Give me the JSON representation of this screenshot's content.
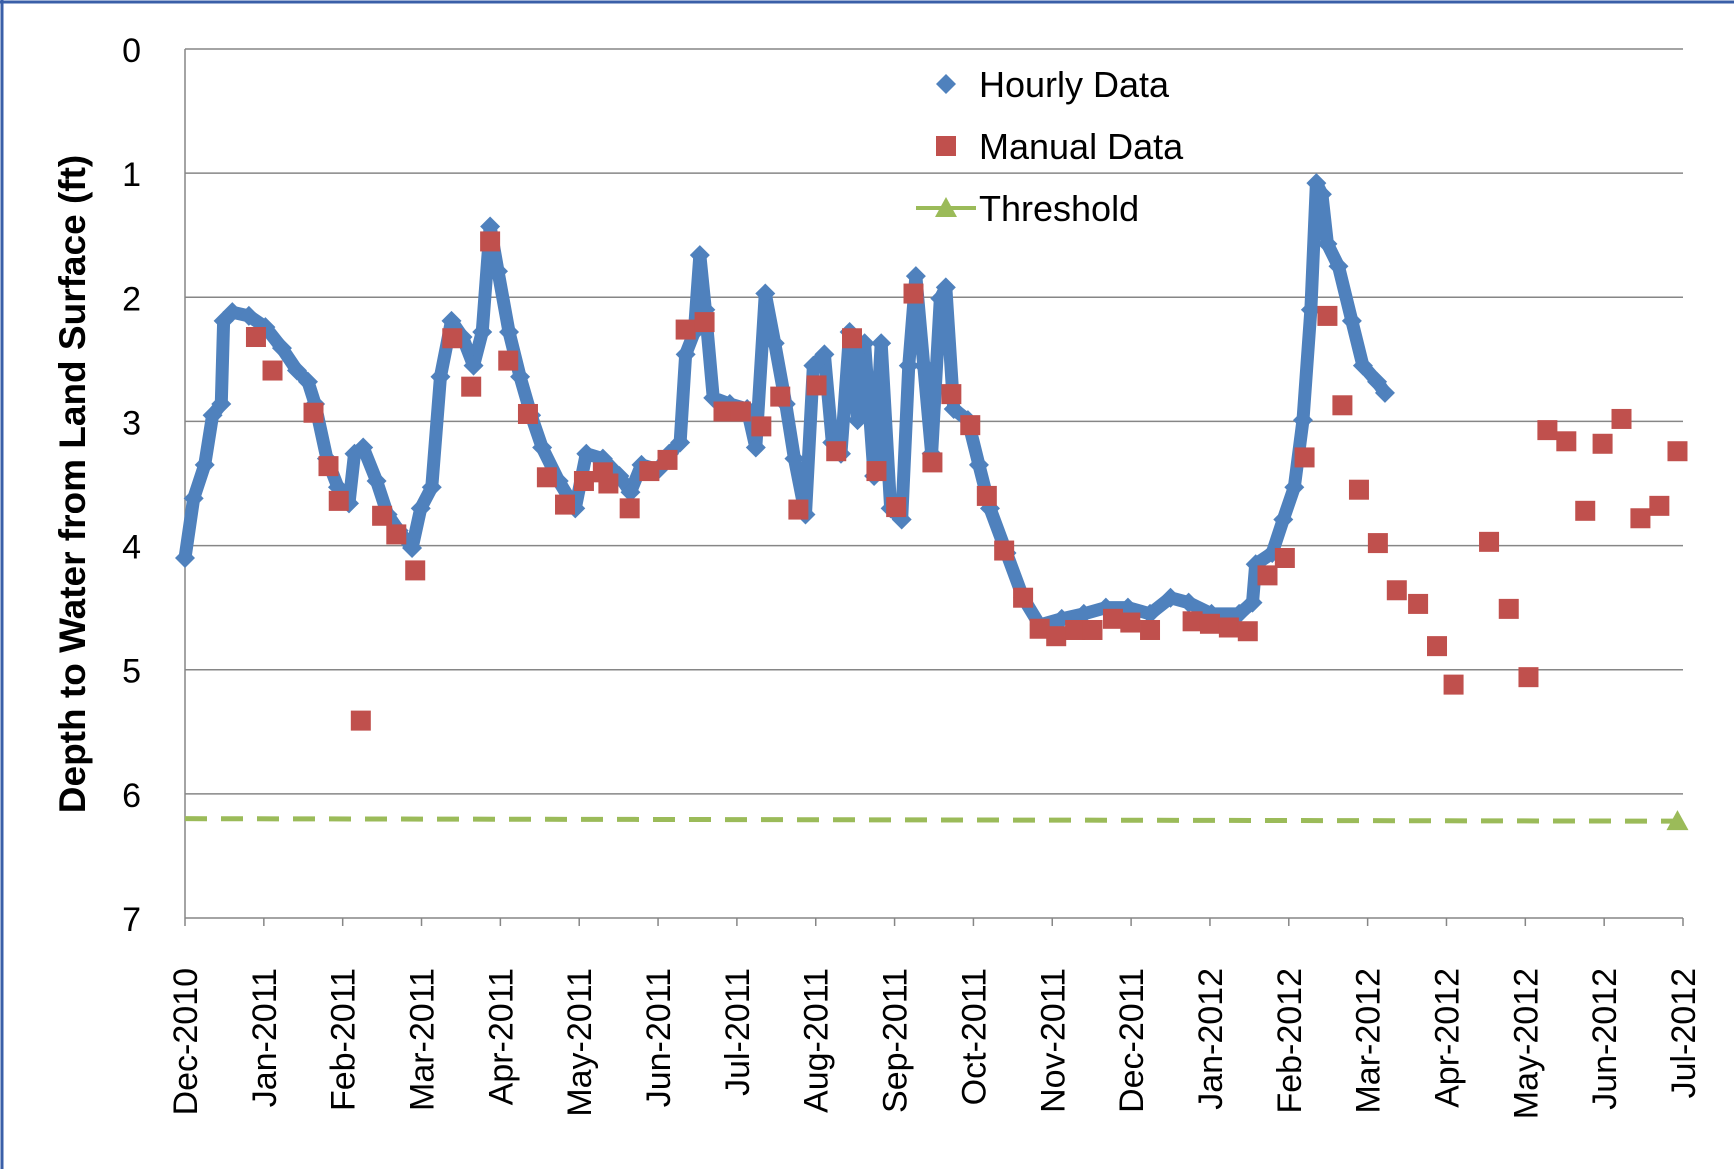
{
  "chart_data": {
    "type": "scatter",
    "y_label": "Depth to Water from Land Surface (ft)",
    "ylim": [
      0,
      7
    ],
    "yticks": [
      0,
      1,
      2,
      3,
      4,
      5,
      6,
      7
    ],
    "y_inverted": true,
    "xlim": [
      0,
      19
    ],
    "xticks": [
      {
        "value": 0,
        "label": "Dec-2010"
      },
      {
        "value": 1,
        "label": "Jan-2011"
      },
      {
        "value": 2,
        "label": "Feb-2011"
      },
      {
        "value": 3,
        "label": "Mar-2011"
      },
      {
        "value": 4,
        "label": "Apr-2011"
      },
      {
        "value": 5,
        "label": "May-2011"
      },
      {
        "value": 6,
        "label": "Jun-2011"
      },
      {
        "value": 7,
        "label": "Jul-2011"
      },
      {
        "value": 8,
        "label": "Aug-2011"
      },
      {
        "value": 9,
        "label": "Sep-2011"
      },
      {
        "value": 10,
        "label": "Oct-2011"
      },
      {
        "value": 11,
        "label": "Nov-2011"
      },
      {
        "value": 12,
        "label": "Dec-2011"
      },
      {
        "value": 13,
        "label": "Jan-2012"
      },
      {
        "value": 14,
        "label": "Feb-2012"
      },
      {
        "value": 15,
        "label": "Mar-2012"
      },
      {
        "value": 16,
        "label": "Apr-2012"
      },
      {
        "value": 17,
        "label": "May-2012"
      },
      {
        "value": 18,
        "label": "Jun-2012"
      },
      {
        "value": 19,
        "label": "Jul-2012"
      }
    ],
    "grid": true,
    "legend": "top",
    "series": [
      {
        "name": "Hourly Data",
        "color": "#4f81bd",
        "marker": "diamond",
        "connected": true,
        "x": [
          0,
          0.11,
          0.25,
          0.35,
          0.46,
          0.49,
          0.6,
          0.81,
          1.02,
          1.23,
          1.42,
          1.56,
          1.65,
          1.8,
          1.94,
          2.08,
          2.15,
          2.26,
          2.43,
          2.57,
          2.71,
          2.88,
          2.99,
          3.13,
          3.24,
          3.38,
          3.52,
          3.66,
          3.77,
          3.87,
          3.97,
          4.11,
          4.25,
          4.39,
          4.53,
          4.74,
          4.95,
          5.09,
          5.3,
          5.51,
          5.65,
          5.79,
          6.0,
          6.14,
          6.28,
          6.35,
          6.46,
          6.53,
          6.6,
          6.7,
          6.91,
          7.13,
          7.24,
          7.36,
          7.48,
          7.62,
          7.73,
          7.87,
          7.97,
          8.11,
          8.21,
          8.32,
          8.43,
          8.53,
          8.62,
          8.74,
          8.83,
          8.95,
          9.09,
          9.18,
          9.27,
          9.37,
          9.47,
          9.58,
          9.65,
          9.75,
          9.93,
          10.07,
          10.21,
          10.42,
          10.63,
          10.84,
          11.12,
          11.4,
          11.68,
          11.96,
          12.24,
          12.5,
          12.73,
          13.02,
          13.37,
          13.54,
          13.58,
          13.79,
          13.93,
          14.07,
          14.18,
          14.28,
          14.35,
          14.42,
          14.49,
          14.63,
          14.8,
          14.94,
          15.12,
          15.22
        ],
        "values": [
          4.1,
          3.62,
          3.35,
          2.95,
          2.86,
          2.19,
          2.12,
          2.15,
          2.24,
          2.41,
          2.59,
          2.68,
          2.86,
          3.3,
          3.53,
          3.66,
          3.26,
          3.21,
          3.48,
          3.75,
          3.88,
          4.02,
          3.7,
          3.53,
          2.64,
          2.19,
          2.32,
          2.55,
          2.28,
          1.43,
          1.79,
          2.28,
          2.64,
          2.95,
          3.21,
          3.48,
          3.7,
          3.26,
          3.3,
          3.44,
          3.57,
          3.35,
          3.39,
          3.26,
          3.17,
          2.46,
          2.28,
          1.66,
          2.1,
          2.81,
          2.86,
          2.9,
          3.21,
          1.97,
          2.37,
          2.86,
          3.3,
          3.75,
          2.55,
          2.46,
          3.17,
          3.26,
          2.28,
          2.99,
          2.37,
          3.44,
          2.37,
          3.7,
          3.79,
          2.55,
          1.83,
          2.55,
          3.26,
          2.01,
          1.92,
          2.9,
          2.99,
          3.35,
          3.7,
          4.06,
          4.42,
          4.64,
          4.59,
          4.55,
          4.5,
          4.5,
          4.55,
          4.42,
          4.46,
          4.55,
          4.55,
          4.46,
          4.15,
          4.06,
          3.79,
          3.53,
          2.99,
          2.1,
          1.08,
          1.17,
          1.57,
          1.75,
          2.19,
          2.55,
          2.68,
          2.77
        ]
      },
      {
        "name": "Manual Data",
        "color": "#c0504d",
        "marker": "square",
        "connected": false,
        "x": [
          0.9,
          1.11,
          1.63,
          1.82,
          1.95,
          2.23,
          2.5,
          2.68,
          2.92,
          3.39,
          3.63,
          3.87,
          4.1,
          4.35,
          4.59,
          4.82,
          5.06,
          5.3,
          5.37,
          5.64,
          5.89,
          6.12,
          6.35,
          6.59,
          6.83,
          7.05,
          7.31,
          7.55,
          7.78,
          8.01,
          8.26,
          8.46,
          8.77,
          9.02,
          9.24,
          9.48,
          9.72,
          9.96,
          10.17,
          10.39,
          10.63,
          10.84,
          11.05,
          11.29,
          11.51,
          11.77,
          11.99,
          12.24,
          12.78,
          13.0,
          13.24,
          13.48,
          13.73,
          13.95,
          14.2,
          14.49,
          14.68,
          14.89,
          15.13,
          15.37,
          15.64,
          15.88,
          16.09,
          16.54,
          16.79,
          17.04,
          17.28,
          17.52,
          17.76,
          17.98,
          18.22,
          18.46,
          18.7,
          18.93
        ],
        "values": [
          2.32,
          2.59,
          2.93,
          3.36,
          3.64,
          5.41,
          3.76,
          3.91,
          4.2,
          2.33,
          2.72,
          1.55,
          2.51,
          2.94,
          3.45,
          3.67,
          3.48,
          3.41,
          3.5,
          3.7,
          3.4,
          3.31,
          2.26,
          2.2,
          2.92,
          2.92,
          3.04,
          2.8,
          3.71,
          2.71,
          3.24,
          2.33,
          3.4,
          3.69,
          1.97,
          3.33,
          2.78,
          3.03,
          3.6,
          4.04,
          4.42,
          4.67,
          4.73,
          4.68,
          4.68,
          4.59,
          4.62,
          4.68,
          4.61,
          4.63,
          4.66,
          4.69,
          4.24,
          4.1,
          3.29,
          2.15,
          2.87,
          3.55,
          3.98,
          4.36,
          4.47,
          4.81,
          5.12,
          3.97,
          4.51,
          5.06,
          3.07,
          3.16,
          3.72,
          3.18,
          2.98,
          3.78,
          3.68,
          3.24
        ]
      },
      {
        "name": "Threshold",
        "color": "#9bbb59",
        "marker": "triangle",
        "connected": true,
        "dashed": true,
        "x": [
          0,
          18.93
        ],
        "values": [
          6.2,
          6.22
        ]
      }
    ]
  }
}
